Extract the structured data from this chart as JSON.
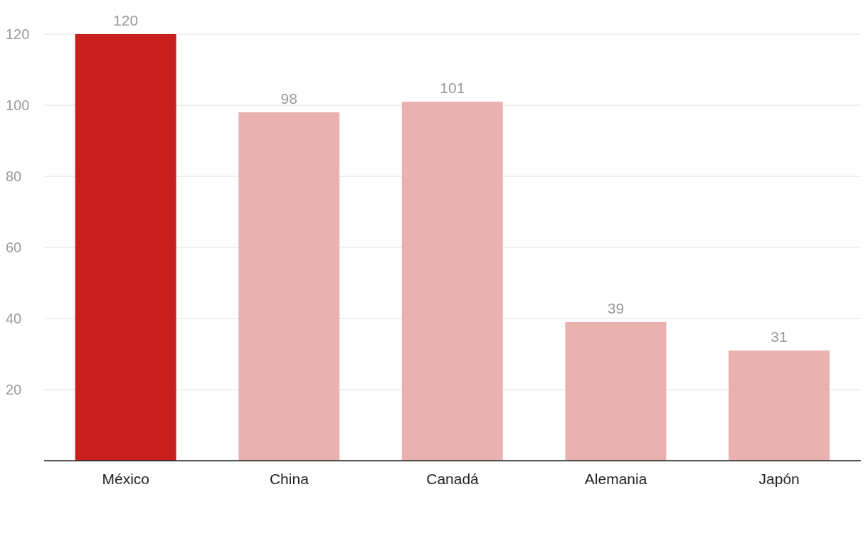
{
  "chart_data": {
    "type": "bar",
    "categories": [
      "México",
      "China",
      "Canadá",
      "Alemania",
      "Japón"
    ],
    "values": [
      120,
      98,
      101,
      39,
      31
    ],
    "colors": [
      "#c91e1e",
      "#eab1b1",
      "#eab1b1",
      "#eab1b1",
      "#eab1b1"
    ],
    "ylim": [
      0,
      120
    ],
    "yticks": [
      {
        "value": 0,
        "label": null
      },
      20,
      40,
      60,
      80,
      100,
      120
    ],
    "grid": "y",
    "data_labels": true
  }
}
